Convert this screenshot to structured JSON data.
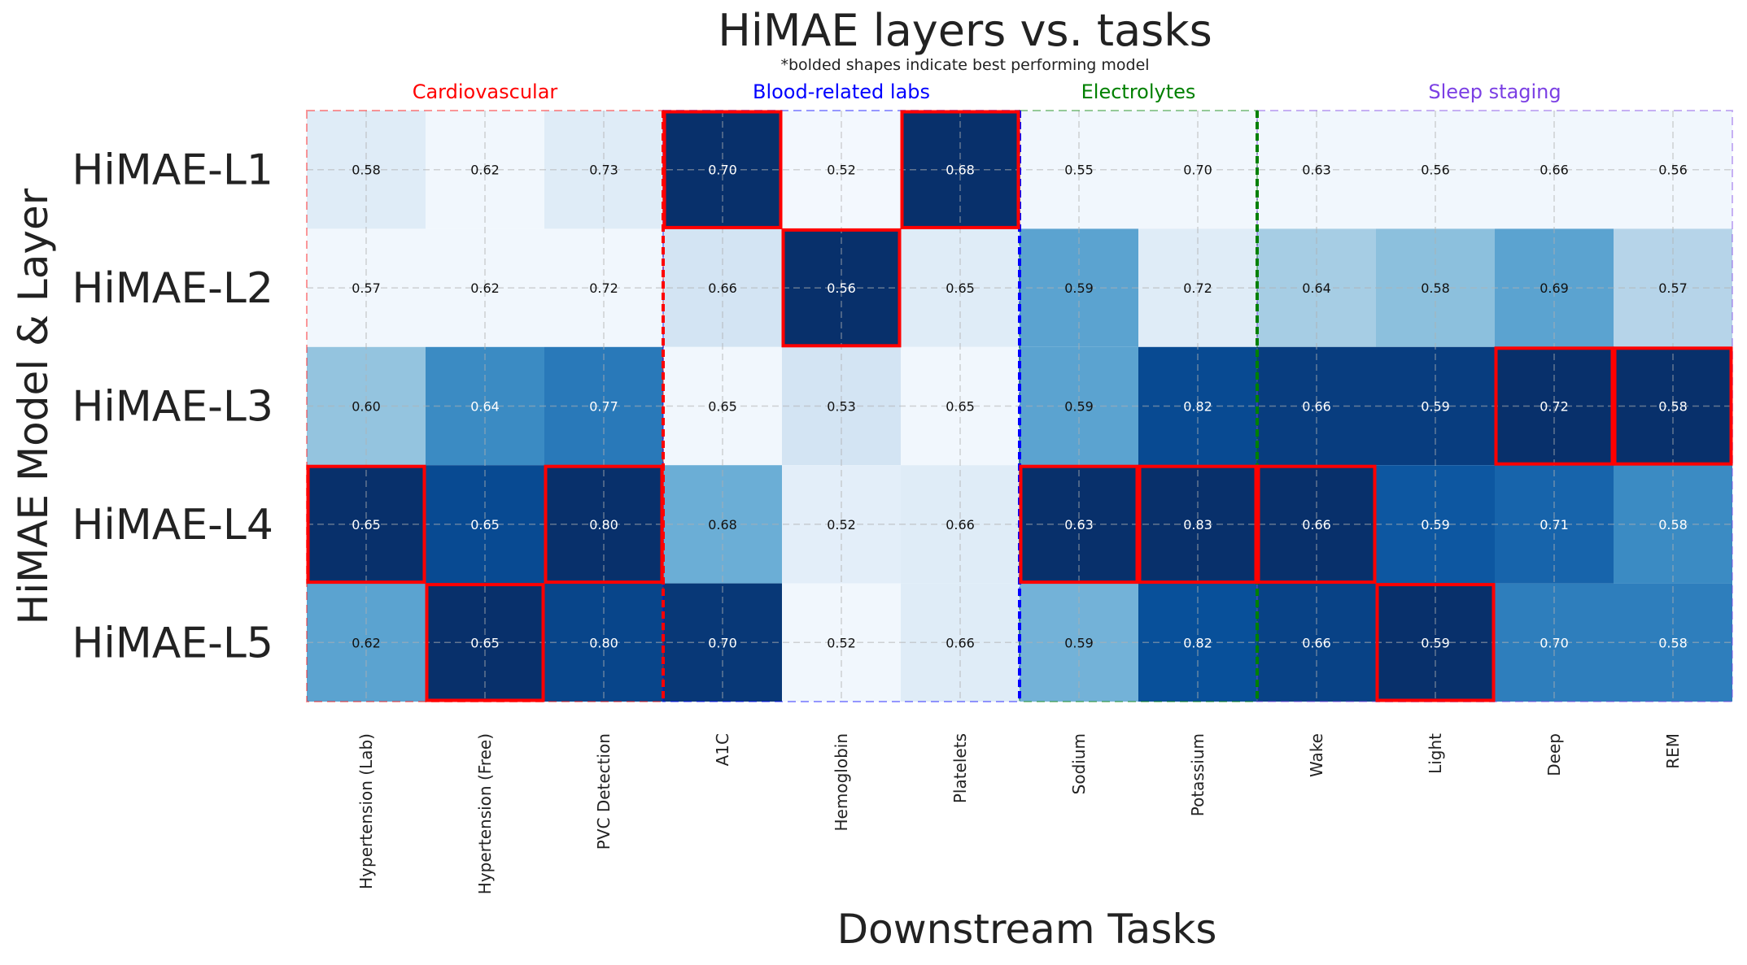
{
  "chart_data": {
    "type": "heatmap",
    "title": "HiMAE layers vs. tasks",
    "subtitle": "*bolded shapes indicate best performing model",
    "xlabel": "Downstream Tasks",
    "ylabel": "HiMAE Model & Layer",
    "rows": [
      "HiMAE-L1",
      "HiMAE-L2",
      "HiMAE-L3",
      "HiMAE-L4",
      "HiMAE-L5"
    ],
    "columns": [
      "Hypertension (Lab)",
      "Hypertension (Free)",
      "PVC Detection",
      "A1C",
      "Hemoglobin",
      "Platelets",
      "Sodium",
      "Potassium",
      "Wake",
      "Light",
      "Deep",
      "REM"
    ],
    "groups": [
      {
        "name": "Cardiovascular",
        "start": 0,
        "end": 2,
        "color": "#ff0000"
      },
      {
        "name": "Blood-related labs",
        "start": 3,
        "end": 5,
        "color": "#0000ff"
      },
      {
        "name": "Electrolytes",
        "start": 6,
        "end": 7,
        "color": "#008000"
      },
      {
        "name": "Sleep staging",
        "start": 8,
        "end": 11,
        "color": "#7b3fe4"
      }
    ],
    "values": [
      [
        "0.58",
        "0.62",
        "0.73",
        "0.70",
        "0.52",
        "0.68",
        "0.55",
        "0.70",
        "0.63",
        "0.56",
        "0.66",
        "0.56"
      ],
      [
        "0.57",
        "0.62",
        "0.72",
        "0.66",
        "0.56",
        "0.65",
        "0.59",
        "0.72",
        "0.64",
        "0.58",
        "0.69",
        "0.57"
      ],
      [
        "0.60",
        "0.64",
        "0.77",
        "0.65",
        "0.53",
        "0.65",
        "0.59",
        "0.82",
        "0.66",
        "0.59",
        "0.72",
        "0.58"
      ],
      [
        "0.65",
        "0.65",
        "0.80",
        "0.68",
        "0.52",
        "0.66",
        "0.63",
        "0.83",
        "0.66",
        "0.59",
        "0.71",
        "0.58"
      ],
      [
        "0.62",
        "0.65",
        "0.80",
        "0.70",
        "0.52",
        "0.66",
        "0.59",
        "0.82",
        "0.66",
        "0.59",
        "0.70",
        "0.58"
      ]
    ],
    "color_intensity": [
      [
        0.12,
        0.03,
        0.12,
        1.0,
        0.02,
        1.0,
        0.03,
        0.03,
        0.03,
        0.03,
        0.03,
        0.03
      ],
      [
        0.03,
        0.03,
        0.03,
        0.18,
        1.0,
        0.12,
        0.55,
        0.12,
        0.35,
        0.42,
        0.55,
        0.3
      ],
      [
        0.4,
        0.65,
        0.72,
        0.03,
        0.18,
        0.03,
        0.55,
        0.9,
        0.95,
        0.95,
        1.0,
        1.0
      ],
      [
        1.0,
        0.9,
        1.0,
        0.5,
        0.1,
        0.12,
        1.0,
        1.0,
        1.0,
        0.85,
        0.8,
        0.65
      ],
      [
        0.55,
        1.0,
        0.92,
        0.97,
        0.03,
        0.12,
        0.48,
        0.88,
        0.93,
        1.0,
        0.7,
        0.7
      ]
    ],
    "best": [
      [
        3,
        0
      ],
      [
        5,
        0
      ],
      [
        4,
        1
      ],
      [
        10,
        2
      ],
      [
        11,
        2
      ],
      [
        0,
        3
      ],
      [
        2,
        3
      ],
      [
        6,
        3
      ],
      [
        7,
        3
      ],
      [
        8,
        3
      ],
      [
        1,
        4
      ],
      [
        9,
        4
      ]
    ],
    "grid": true,
    "colormap": "Blues",
    "highlight_color": "#ff0000"
  }
}
